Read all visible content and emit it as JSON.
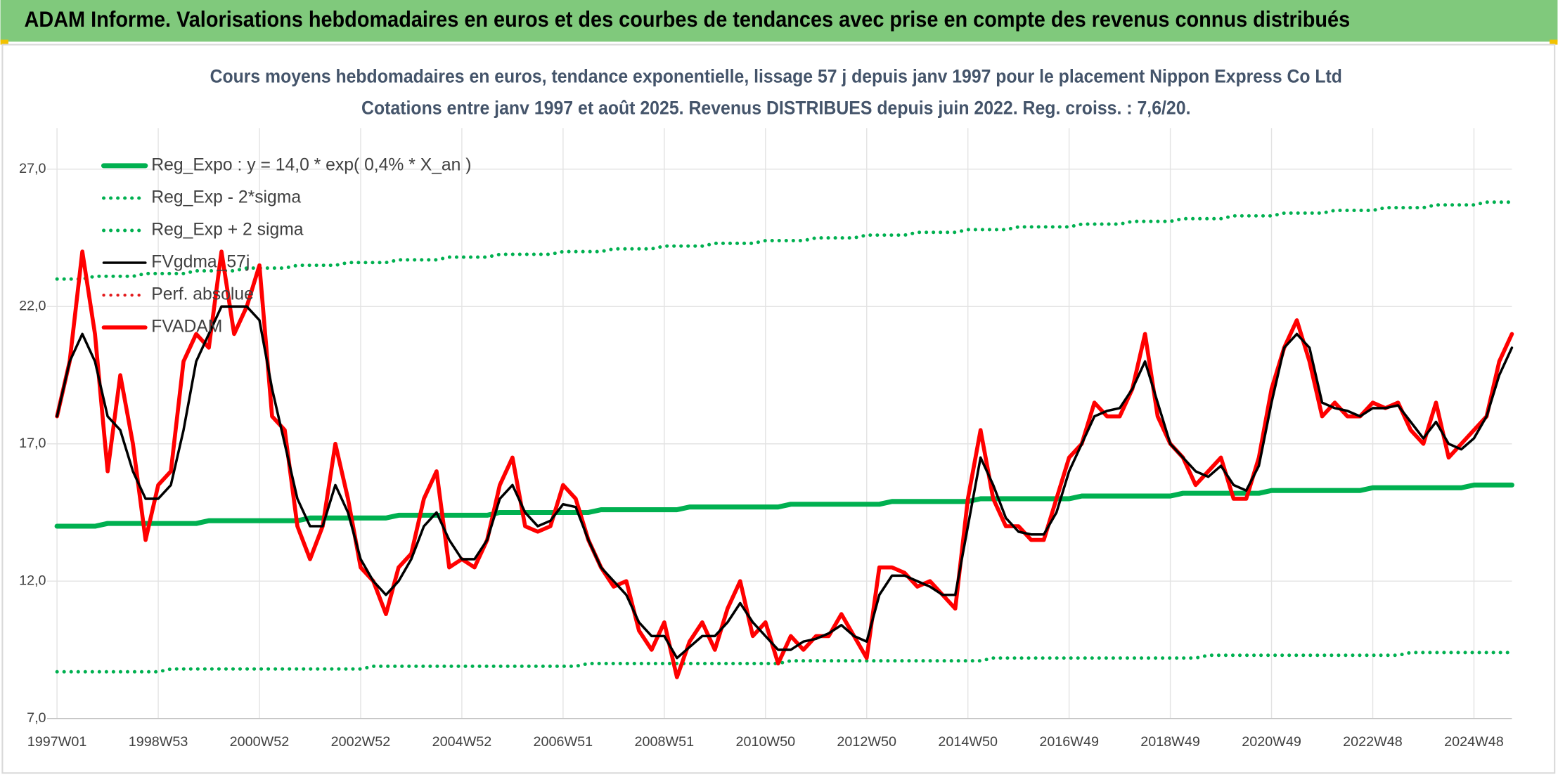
{
  "chart_data": {
    "type": "line",
    "title": "ADAM Informe. Valorisations hebdomadaires en euros et des courbes de tendances avec prise en compte des revenus connus distribués",
    "subtitle": [
      "Cours moyens hebdomadaires en euros, tendance exponentielle, lissage 57 j depuis janv 1997 pour le placement Nippon Express Co Ltd",
      "Cotations entre janv 1997 et août 2025. Revenus DISTRIBUES depuis juin 2022. Reg. croiss. : 7,6/20."
    ],
    "legend_position": "upper left",
    "grid": true,
    "ylim": [
      7,
      28.5
    ],
    "yticks": [
      {
        "value": 7,
        "label": "7,0"
      },
      {
        "value": 12,
        "label": "12,0"
      },
      {
        "value": 17,
        "label": "17,0"
      },
      {
        "value": 22,
        "label": "22,0"
      },
      {
        "value": 27,
        "label": "27,0"
      }
    ],
    "categories": [
      "1997W01",
      null,
      null,
      null,
      null,
      null,
      null,
      null,
      "1998W53",
      null,
      null,
      null,
      null,
      null,
      null,
      null,
      "2000W52",
      null,
      null,
      null,
      null,
      null,
      null,
      null,
      "2002W52",
      null,
      null,
      null,
      null,
      null,
      null,
      null,
      "2004W52",
      null,
      null,
      null,
      null,
      null,
      null,
      null,
      "2006W51",
      null,
      null,
      null,
      null,
      null,
      null,
      null,
      "2008W51",
      null,
      null,
      null,
      null,
      null,
      null,
      null,
      "2010W50",
      null,
      null,
      null,
      null,
      null,
      null,
      null,
      "2012W50",
      null,
      null,
      null,
      null,
      null,
      null,
      null,
      "2014W50",
      null,
      null,
      null,
      null,
      null,
      null,
      null,
      "2016W49",
      null,
      null,
      null,
      null,
      null,
      null,
      null,
      "2018W49",
      null,
      null,
      null,
      null,
      null,
      null,
      null,
      "2020W49",
      null,
      null,
      null,
      null,
      null,
      null,
      null,
      "2022W48",
      null,
      null,
      null,
      null,
      null,
      null,
      null,
      "2024W48",
      null,
      null,
      null
    ],
    "series": [
      {
        "name": "Reg_Expo : y = 14,0 * exp( 0,4% *  X_an )",
        "color": "#00b050",
        "line_style": "solid",
        "width": 5,
        "values": [
          14.0,
          14.0,
          14.0,
          14.0,
          14.1,
          14.1,
          14.1,
          14.1,
          14.1,
          14.1,
          14.1,
          14.1,
          14.2,
          14.2,
          14.2,
          14.2,
          14.2,
          14.2,
          14.2,
          14.2,
          14.3,
          14.3,
          14.3,
          14.3,
          14.3,
          14.3,
          14.3,
          14.4,
          14.4,
          14.4,
          14.4,
          14.4,
          14.4,
          14.4,
          14.4,
          14.5,
          14.5,
          14.5,
          14.5,
          14.5,
          14.5,
          14.5,
          14.5,
          14.6,
          14.6,
          14.6,
          14.6,
          14.6,
          14.6,
          14.6,
          14.7,
          14.7,
          14.7,
          14.7,
          14.7,
          14.7,
          14.7,
          14.7,
          14.8,
          14.8,
          14.8,
          14.8,
          14.8,
          14.8,
          14.8,
          14.8,
          14.9,
          14.9,
          14.9,
          14.9,
          14.9,
          14.9,
          14.9,
          15.0,
          15.0,
          15.0,
          15.0,
          15.0,
          15.0,
          15.0,
          15.0,
          15.1,
          15.1,
          15.1,
          15.1,
          15.1,
          15.1,
          15.1,
          15.1,
          15.2,
          15.2,
          15.2,
          15.2,
          15.2,
          15.2,
          15.2,
          15.3,
          15.3,
          15.3,
          15.3,
          15.3,
          15.3,
          15.3,
          15.3,
          15.4,
          15.4,
          15.4,
          15.4,
          15.4,
          15.4,
          15.4,
          15.4,
          15.5,
          15.5,
          15.5,
          15.5
        ]
      },
      {
        "name": "Reg_Exp - 2*sigma",
        "color": "#00b050",
        "line_style": "dotted",
        "width": 3.5,
        "values": [
          8.7,
          8.7,
          8.7,
          8.7,
          8.7,
          8.7,
          8.7,
          8.7,
          8.7,
          8.8,
          8.8,
          8.8,
          8.8,
          8.8,
          8.8,
          8.8,
          8.8,
          8.8,
          8.8,
          8.8,
          8.8,
          8.8,
          8.8,
          8.8,
          8.8,
          8.9,
          8.9,
          8.9,
          8.9,
          8.9,
          8.9,
          8.9,
          8.9,
          8.9,
          8.9,
          8.9,
          8.9,
          8.9,
          8.9,
          8.9,
          8.9,
          8.9,
          9.0,
          9.0,
          9.0,
          9.0,
          9.0,
          9.0,
          9.0,
          9.0,
          9.0,
          9.0,
          9.0,
          9.0,
          9.0,
          9.0,
          9.0,
          9.0,
          9.1,
          9.1,
          9.1,
          9.1,
          9.1,
          9.1,
          9.1,
          9.1,
          9.1,
          9.1,
          9.1,
          9.1,
          9.1,
          9.1,
          9.1,
          9.1,
          9.2,
          9.2,
          9.2,
          9.2,
          9.2,
          9.2,
          9.2,
          9.2,
          9.2,
          9.2,
          9.2,
          9.2,
          9.2,
          9.2,
          9.2,
          9.2,
          9.2,
          9.3,
          9.3,
          9.3,
          9.3,
          9.3,
          9.3,
          9.3,
          9.3,
          9.3,
          9.3,
          9.3,
          9.3,
          9.3,
          9.3,
          9.3,
          9.3,
          9.4,
          9.4,
          9.4,
          9.4,
          9.4,
          9.4,
          9.4,
          9.4,
          9.4
        ]
      },
      {
        "name": "Reg_Exp + 2 sigma",
        "color": "#00b050",
        "line_style": "dotted",
        "width": 3.5,
        "values": [
          23.0,
          23.0,
          23.0,
          23.1,
          23.1,
          23.1,
          23.1,
          23.2,
          23.2,
          23.2,
          23.2,
          23.3,
          23.3,
          23.3,
          23.3,
          23.4,
          23.4,
          23.4,
          23.4,
          23.5,
          23.5,
          23.5,
          23.5,
          23.6,
          23.6,
          23.6,
          23.6,
          23.7,
          23.7,
          23.7,
          23.7,
          23.8,
          23.8,
          23.8,
          23.8,
          23.9,
          23.9,
          23.9,
          23.9,
          23.9,
          24.0,
          24.0,
          24.0,
          24.0,
          24.1,
          24.1,
          24.1,
          24.1,
          24.2,
          24.2,
          24.2,
          24.2,
          24.3,
          24.3,
          24.3,
          24.3,
          24.4,
          24.4,
          24.4,
          24.4,
          24.5,
          24.5,
          24.5,
          24.5,
          24.6,
          24.6,
          24.6,
          24.6,
          24.7,
          24.7,
          24.7,
          24.7,
          24.8,
          24.8,
          24.8,
          24.8,
          24.9,
          24.9,
          24.9,
          24.9,
          24.9,
          25.0,
          25.0,
          25.0,
          25.0,
          25.1,
          25.1,
          25.1,
          25.1,
          25.2,
          25.2,
          25.2,
          25.2,
          25.3,
          25.3,
          25.3,
          25.3,
          25.4,
          25.4,
          25.4,
          25.4,
          25.5,
          25.5,
          25.5,
          25.5,
          25.6,
          25.6,
          25.6,
          25.6,
          25.7,
          25.7,
          25.7,
          25.7,
          25.8,
          25.8,
          25.8
        ]
      },
      {
        "name": "FVgdma_57j",
        "color": "#000000",
        "line_style": "solid",
        "width": 2.5,
        "values": [
          18,
          20,
          21,
          20,
          18,
          17.5,
          16,
          15,
          15,
          15.5,
          17.5,
          20,
          21,
          22,
          22,
          22,
          21.5,
          19,
          17,
          15,
          14,
          14,
          15.5,
          14.5,
          12.8,
          12,
          11.5,
          12,
          12.8,
          14,
          14.5,
          13.5,
          12.8,
          12.8,
          13.5,
          15,
          15.5,
          14.5,
          14,
          14.2,
          14.8,
          14.7,
          13.5,
          12.5,
          12,
          11.5,
          10.5,
          10,
          10,
          9.2,
          9.6,
          10,
          10,
          10.5,
          11.2,
          10.5,
          10,
          9.5,
          9.5,
          9.8,
          9.9,
          10.1,
          10.4,
          10,
          9.8,
          11.5,
          12.2,
          12.2,
          12,
          11.8,
          11.5,
          11.5,
          14,
          16.5,
          15.5,
          14.3,
          13.8,
          13.7,
          13.7,
          14.5,
          16,
          17,
          18,
          18.2,
          18.3,
          19,
          20,
          18.5,
          17,
          16.5,
          16,
          15.8,
          16.2,
          15.5,
          15.3,
          16.2,
          18.5,
          20.5,
          21,
          20.5,
          18.5,
          18.3,
          18.2,
          18,
          18.3,
          18.3,
          18.4,
          17.8,
          17.2,
          17.8,
          17,
          16.8,
          17.2,
          18,
          19.5,
          20.5
        ]
      },
      {
        "name": "Perf. absolue",
        "color": "#e31a1c",
        "line_style": "dotted",
        "width": 3
      },
      {
        "name": "FVADAM",
        "color": "#ff0000",
        "line_style": "solid",
        "width": 4,
        "values": [
          18,
          20,
          24,
          21,
          16,
          19.5,
          17,
          13.5,
          15.5,
          16,
          20,
          21,
          20.5,
          24,
          21,
          22,
          23.5,
          18,
          17.5,
          14,
          12.8,
          14,
          17,
          15,
          12.5,
          12,
          10.8,
          12.5,
          13,
          15,
          16,
          12.5,
          12.8,
          12.5,
          13.5,
          15.5,
          16.5,
          14,
          13.8,
          14,
          15.5,
          15,
          13.5,
          12.5,
          11.8,
          12,
          10.2,
          9.5,
          10.5,
          8.5,
          9.8,
          10.5,
          9.5,
          11,
          12,
          10,
          10.5,
          9,
          10,
          9.5,
          10,
          10,
          10.8,
          10,
          9.2,
          12.5,
          12.5,
          12.3,
          11.8,
          12,
          11.5,
          11,
          15,
          17.5,
          15,
          14,
          14,
          13.5,
          13.5,
          15,
          16.5,
          17,
          18.5,
          18,
          18,
          19,
          21,
          18,
          17,
          16.5,
          15.5,
          16,
          16.5,
          15,
          15,
          16.5,
          19,
          20.5,
          21.5,
          20,
          18,
          18.5,
          18,
          18,
          18.5,
          18.3,
          18.5,
          17.5,
          17,
          18.5,
          16.5,
          17,
          17.5,
          18,
          20,
          21
        ]
      }
    ]
  }
}
